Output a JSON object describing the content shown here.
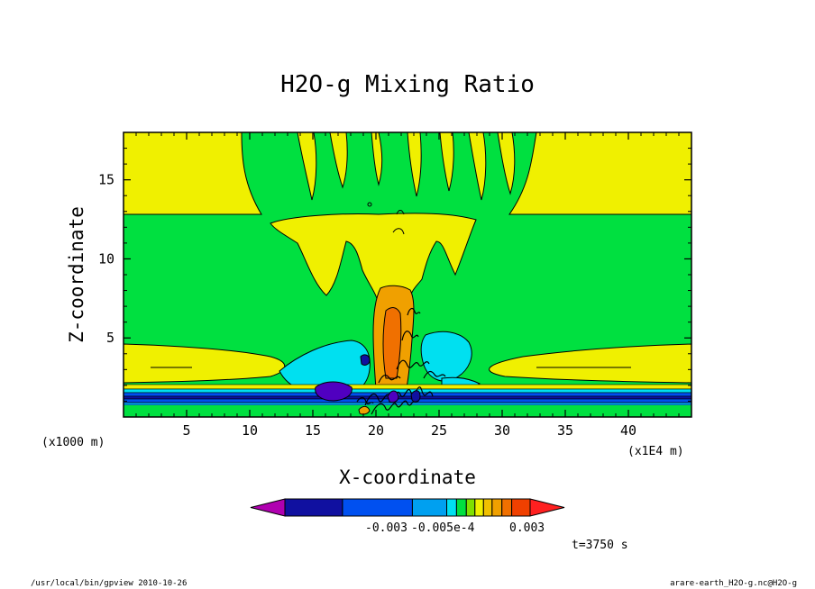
{
  "chart_data": {
    "type": "heatmap",
    "title": "H2O-g Mixing Ratio",
    "xlabel": "X-coordinate",
    "ylabel": "Z-coordinate",
    "x_unit_label": "(x1E4 m)",
    "y_unit_label": "(x1000 m)",
    "xlim": [
      0,
      45
    ],
    "ylim": [
      0,
      18
    ],
    "x_ticks": [
      5,
      10,
      15,
      20,
      25,
      30,
      35,
      40
    ],
    "y_ticks": [
      5,
      10,
      15
    ],
    "time_label": "t=3750 s",
    "colorbar": {
      "labels": [
        "-0.003",
        "-0.005e-4",
        "0.003"
      ],
      "colors": [
        "#b000b0",
        "#b000b0",
        "#8000b0",
        "#8000b0",
        "#5000c0",
        "#1010a0",
        "#0050f0",
        "#00a0f0",
        "#00e0f0",
        "#00e040",
        "#80e000",
        "#f0f000",
        "#f0c000",
        "#f0a000",
        "#f07000",
        "#f04000",
        "#ff2020"
      ]
    },
    "regions": {
      "background": "green",
      "upper_side_bands": "yellow",
      "anvil_outflow": "yellow",
      "updraft_column": "orange",
      "low_level_layers": "yellow / blue",
      "moist_patches": "cyan"
    }
  },
  "footer": {
    "left": "/usr/local/bin/gpview  2010-10-26",
    "right": "arare-earth_H2O-g.nc@H2O-g"
  }
}
